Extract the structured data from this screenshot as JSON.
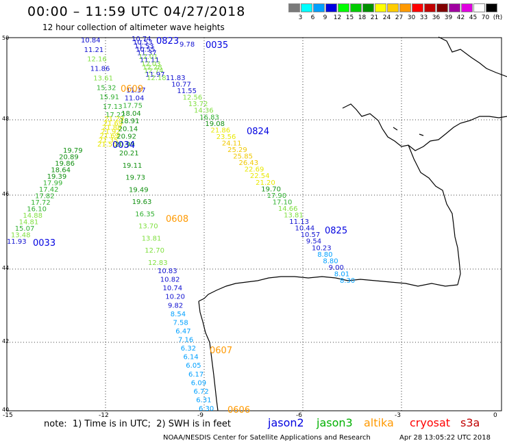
{
  "header": {
    "title": "00:00 – 11:59 UTC 04/27/2018",
    "subtitle": "12 hour collection of altimeter wave heights"
  },
  "legend": {
    "colors": [
      "#7a7a7a",
      "#00ffff",
      "#00a0ff",
      "#0000e0",
      "#00ff00",
      "#00cc00",
      "#009000",
      "#ffff00",
      "#ffcc00",
      "#ff9900",
      "#ff0000",
      "#c00000",
      "#800000",
      "#a000a0",
      "#e000e0",
      "#ffffff",
      "#000000"
    ],
    "labels": [
      "3",
      "6",
      "9",
      "12",
      "15",
      "18",
      "21",
      "24",
      "27",
      "30",
      "33",
      "36",
      "39",
      "42",
      "45",
      "70",
      "(ft)"
    ]
  },
  "axes": {
    "x_ticks": [
      "-15",
      "-12",
      "-9",
      "-6",
      "-3",
      "0"
    ],
    "y_ticks": [
      "50",
      "48",
      "46",
      "44",
      "42",
      "40"
    ]
  },
  "tracks": [
    {
      "time": "0823",
      "color": "#0000e0",
      "points": [
        "10.74",
        "10.53",
        "11.53",
        "10.55",
        "11.37",
        "12.01",
        "11.11",
        "12.03",
        "12.28",
        "12.74",
        "11.97",
        "12.18",
        "11.83",
        "10.77",
        "11.55",
        "12.56",
        "13.72",
        "14.36",
        "16.83",
        "19.08",
        "21.86",
        "23.56",
        "24.11",
        "25.29",
        "25.85",
        "26.43",
        "22.69",
        "22.54",
        "21.20",
        "19.70",
        "17.90",
        "17.10",
        "14.66",
        "13.81",
        "11.13",
        "10.44",
        "10.57",
        "9.54",
        "10.23",
        "8.80",
        "8.80",
        "9.00",
        "8.01",
        "8.30"
      ]
    },
    {
      "time": "0824",
      "color": "#0000e0"
    },
    {
      "time": "0825",
      "color": "#0000e0"
    },
    {
      "time": "0035",
      "color": "#0000e0",
      "points": [
        "9.78"
      ]
    },
    {
      "time": "0034",
      "color": "#0000e0",
      "points": [
        "10.84",
        "11.21",
        "12.16",
        "11.86",
        "13.61",
        "15.32",
        "15.91",
        "17.13",
        "17.22",
        "21.29",
        "21.69",
        "21.88",
        "21.92",
        "21.69",
        "21.35",
        "21.56",
        "19.79",
        "20.89",
        "19.86",
        "18.64",
        "19.39",
        "17.99",
        "17.42",
        "17.82",
        "17.72",
        "16.10",
        "14.88",
        "14.81",
        "15.07",
        "13.48",
        "11.93"
      ]
    },
    {
      "time": "0033",
      "color": "#0000e0"
    },
    {
      "time": "0609",
      "color": "#ff9900",
      "points": [
        "11.37",
        "11.04",
        "17.75",
        "18.04",
        "18.91",
        "20.14",
        "20.92",
        "20.99",
        "20.21",
        "19.11",
        "19.73",
        "19.49",
        "19.63",
        "16.35",
        "13.70",
        "13.81",
        "12.70",
        "12.83",
        "10.83",
        "10.82",
        "10.74",
        "10.20",
        "9.82",
        "8.54",
        "7.58",
        "6.47",
        "7.16",
        "6.32",
        "6.14",
        "6.05",
        "6.17",
        "6.09",
        "6.72",
        "6.31",
        "6.30"
      ]
    },
    {
      "time": "0608",
      "color": "#ff9900"
    },
    {
      "time": "0607",
      "color": "#ff9900"
    },
    {
      "time": "0606",
      "color": "#ff9900"
    }
  ],
  "note": "note:  1) Time is in UTC;  2) SWH is in feet",
  "satellites": [
    {
      "name": "jason2",
      "color": "#0000e0"
    },
    {
      "name": "jason3",
      "color": "#00b000"
    },
    {
      "name": "altika",
      "color": "#ff9900"
    },
    {
      "name": "cryosat",
      "color": "#ff0000"
    },
    {
      "name": "s3a",
      "color": "#c00000"
    }
  ],
  "credit": "NOAA/NESDIS Center for Satellite Applications and Research",
  "timestamp": "Apr 28 13:05:22 UTC 2018"
}
